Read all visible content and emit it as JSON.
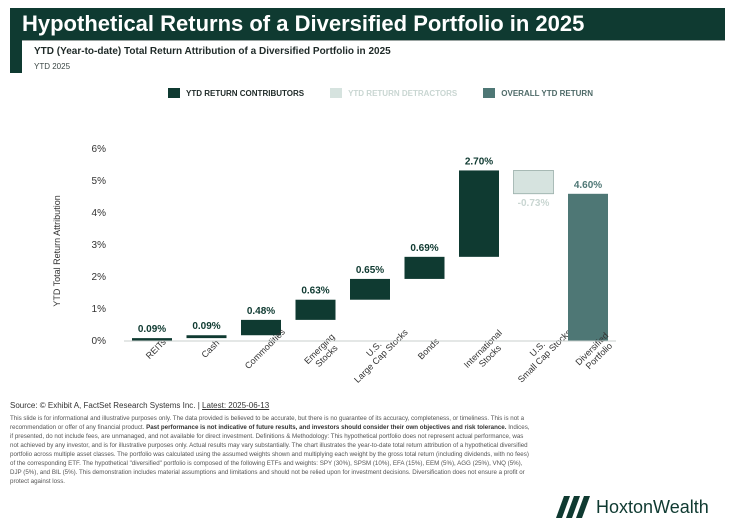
{
  "header": {
    "title": "Hypothetical Returns of a Diversified Portfolio in 2025",
    "subtitle": "YTD (Year-to-date) Total Return Attribution of a Diversified Portfolio in 2025",
    "period": "YTD 2025"
  },
  "legend": [
    {
      "label": "YTD RETURN CONTRIBUTORS",
      "color": "#0f3a31"
    },
    {
      "label": "YTD RETURN DETRACTORS",
      "color": "#d6e3df"
    },
    {
      "label": "OVERALL YTD RETURN",
      "color": "#4e7775"
    }
  ],
  "chart_data": {
    "type": "bar",
    "subtype": "waterfall",
    "ylabel": "YTD Total Return Attribution",
    "ylim": [
      0,
      6
    ],
    "yticks": [
      "0%",
      "1%",
      "2%",
      "3%",
      "4%",
      "5%",
      "6%"
    ],
    "categories": [
      "REITs",
      "Cash",
      "Commodities",
      "Emerging Stocks",
      "U.S. Large Cap Stocks",
      "Bonds",
      "International Stocks",
      "U.S. Small Cap Stocks",
      "Diversified Portfolio"
    ],
    "tick_labels": [
      [
        "REITs"
      ],
      [
        "Cash"
      ],
      [
        "Commodities"
      ],
      [
        "Emerging",
        "Stocks"
      ],
      [
        "U.S.",
        "Large Cap Stocks"
      ],
      [
        "Bonds"
      ],
      [
        "International",
        "Stocks"
      ],
      [
        "U.S.",
        "Small Cap Stocks"
      ],
      [
        "Diversified",
        "Portfolio"
      ]
    ],
    "values": [
      0.09,
      0.09,
      0.48,
      0.63,
      0.65,
      0.69,
      2.7,
      -0.73,
      4.6
    ],
    "data_labels": [
      "0.09%",
      "0.09%",
      "0.48%",
      "0.63%",
      "0.65%",
      "0.69%",
      "2.70%",
      "-0.73%",
      "4.60%"
    ],
    "kinds": [
      "contributor",
      "contributor",
      "contributor",
      "contributor",
      "contributor",
      "contributor",
      "contributor",
      "detractor",
      "total"
    ],
    "grid": false
  },
  "footer": {
    "source_prefix": "Source: © Exhibit A, FactSet Research Systems Inc. | ",
    "source_date": "Latest: 2025-06-13",
    "disclaimer_1": "This slide is for informational and illustrative purposes only. The data provided is believed to be accurate, but there is no guarantee of its accuracy, completeness, or timeliness. This is not a recommendation or offer of any financial product.",
    "disclaimer_bold": "Past performance is not indicative of future results, and investors should consider their own objectives and risk tolerance.",
    "disclaimer_2": "Indices, if presented, do not include fees, are unmanaged, and not available for direct investment. Definitions & Methodology: This hypothetical portfolio does not represent actual performance, was not achieved by any investor, and is for illustrative purposes only. Actual results may vary substantially. The chart illustrates the year-to-date total return attribution of a hypothetical diversified portfolio across multiple asset classes. The portfolio was calculated using the assumed weights shown and multiplying each weight by the gross total return (including dividends, with no fees) of the corresponding ETF. The hypothetical \"diversified\" portfolio is composed of the following ETFs and weights: SPY (30%), SPSM (10%), EFA (15%), EEM (5%), AGG (25%), VNQ (5%), DJP (5%), and BIL (5%). This demonstration includes material assumptions and limitations and should not be relied upon for investment decisions. Diversification does not ensure a profit or protect against loss.",
    "logo_text": "HoxtonWealth"
  }
}
